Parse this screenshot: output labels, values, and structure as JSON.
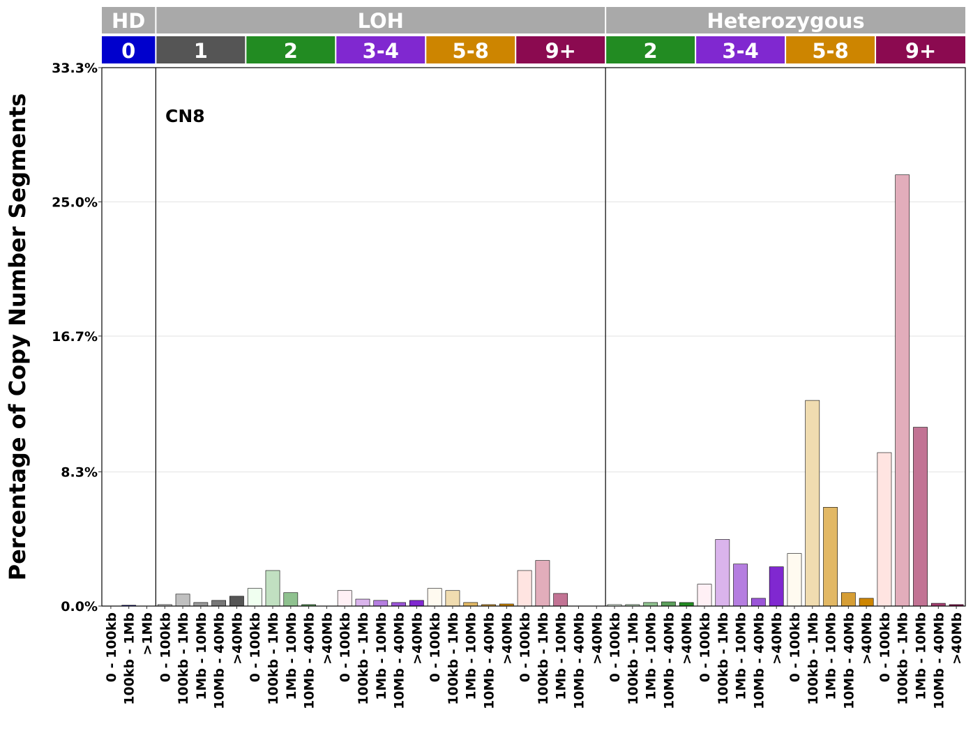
{
  "chart_data": {
    "type": "bar",
    "ylabel": "Percentage of Copy Number Segments",
    "annotation": "CN8",
    "ylim": [
      0,
      33.3
    ],
    "yticks": [
      "0.0%",
      "8.3%",
      "16.7%",
      "25.0%",
      "33.3%"
    ],
    "ytick_values": [
      0,
      8.3,
      16.7,
      25.0,
      33.3
    ],
    "grid": true,
    "top_groups": [
      {
        "label": "HD",
        "color": "#a9a9a9"
      },
      {
        "label": "LOH",
        "color": "#a9a9a9"
      },
      {
        "label": "Heterozygous",
        "color": "#a9a9a9"
      }
    ],
    "cn_groups": [
      {
        "label": "0",
        "color": "#0000cd",
        "top": 0
      },
      {
        "label": "1",
        "color": "#555555",
        "top": 1
      },
      {
        "label": "2",
        "color": "#228b22",
        "top": 1
      },
      {
        "label": "3-4",
        "color": "#8028d0",
        "top": 1
      },
      {
        "label": "5-8",
        "color": "#cd8500",
        "top": 1
      },
      {
        "label": "9+",
        "color": "#8b0a50",
        "top": 1
      },
      {
        "label": "2",
        "color": "#228b22",
        "top": 2
      },
      {
        "label": "3-4",
        "color": "#8028d0",
        "top": 2
      },
      {
        "label": "5-8",
        "color": "#cd8500",
        "top": 2
      },
      {
        "label": "9+",
        "color": "#8b0a50",
        "top": 2
      }
    ],
    "categories": [
      "0 - 100kb",
      "100kb - 1Mb",
      ">1Mb",
      "0 - 100kb",
      "100kb - 1Mb",
      "1Mb - 10Mb",
      "10Mb - 40Mb",
      ">40Mb",
      "0 - 100kb",
      "100kb - 1Mb",
      "1Mb - 10Mb",
      "10Mb - 40Mb",
      ">40Mb",
      "0 - 100kb",
      "100kb - 1Mb",
      "1Mb - 10Mb",
      "10Mb - 40Mb",
      ">40Mb",
      "0 - 100kb",
      "100kb - 1Mb",
      "1Mb - 10Mb",
      "10Mb - 40Mb",
      ">40Mb",
      "0 - 100kb",
      "100kb - 1Mb",
      "1Mb - 10Mb",
      "10Mb - 40Mb",
      ">40Mb",
      "0 - 100kb",
      "100kb - 1Mb",
      "1Mb - 10Mb",
      "10Mb - 40Mb",
      ">40Mb",
      "0 - 100kb",
      "100kb - 1Mb",
      "1Mb - 10Mb",
      "10Mb - 40Mb",
      ">40Mb",
      "0 - 100kb",
      "100kb - 1Mb",
      "1Mb - 10Mb",
      "10Mb - 40Mb",
      ">40Mb",
      "0 - 100kb",
      "100kb - 1Mb",
      "1Mb - 10Mb",
      "10Mb - 40Mb",
      ">40Mb"
    ],
    "values": [
      0,
      0.05,
      0,
      0.09,
      0.74,
      0.22,
      0.35,
      0.61,
      1.09,
      2.2,
      0.83,
      0.09,
      0,
      0.96,
      0.43,
      0.35,
      0.22,
      0.35,
      1.09,
      0.96,
      0.22,
      0.09,
      0.13,
      2.2,
      2.82,
      0.78,
      0,
      0,
      0.09,
      0.09,
      0.22,
      0.26,
      0.22,
      1.35,
      4.12,
      2.6,
      0.48,
      2.43,
      3.25,
      12.72,
      6.11,
      0.83,
      0.48,
      9.49,
      26.67,
      11.06,
      0.17,
      0.09
    ],
    "bar_colors": [
      "#0000cd",
      "#0000cd",
      "#0000cd",
      "#c8c8c8",
      "#c0c0c0",
      "#999999",
      "#777777",
      "#555555",
      "#f0fff0",
      "#c1e0c1",
      "#8fc18f",
      "#5c9f5c",
      "#228b22",
      "#fff0f5",
      "#dab4ec",
      "#b57ee0",
      "#9b55d8",
      "#8028d0",
      "#fffaf0",
      "#f0dcb0",
      "#e2b865",
      "#d69e35",
      "#cd8500",
      "#ffe4e1",
      "#e2adbb",
      "#c27394",
      "#a63f71",
      "#8b0a50",
      "#f0fff0",
      "#c1e0c1",
      "#8fc18f",
      "#5c9f5c",
      "#228b22",
      "#fff0f5",
      "#dab4ec",
      "#b57ee0",
      "#9b55d8",
      "#8028d0",
      "#fffaf0",
      "#f0dcb0",
      "#e2b865",
      "#d69e35",
      "#cd8500",
      "#ffe4e1",
      "#e2adbb",
      "#c27394",
      "#a63f71",
      "#8b0a50"
    ]
  }
}
